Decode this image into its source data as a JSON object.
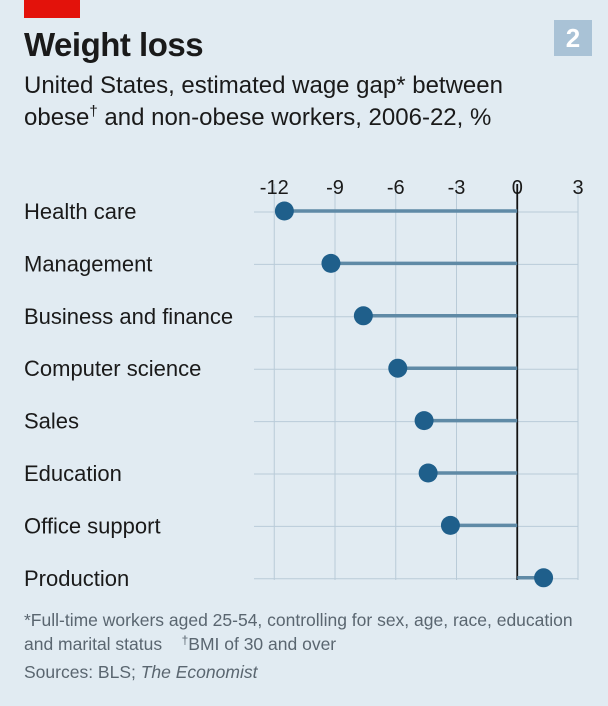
{
  "header": {
    "badge": "2",
    "title": "Weight loss",
    "subtitle_part1": "United States, estimated wage gap* between obese",
    "subtitle_dagger": "†",
    "subtitle_part2": " and non-obese workers, 2006-22, %"
  },
  "colors": {
    "accent_red": "#e3120b",
    "dot": "#1f5f8b",
    "stem": "#5f8aa6",
    "badge": "#a9c2d6",
    "background": "#e1ebf2"
  },
  "chart_data": {
    "type": "dot",
    "title": "Weight loss",
    "subtitle": "United States, estimated wage gap* between obese† and non-obese workers, 2006-22, %",
    "xlabel": "",
    "ylabel": "",
    "xlim": [
      -13,
      3
    ],
    "ticks": [
      -12,
      -9,
      -6,
      -3,
      0,
      3
    ],
    "tick_labels": [
      "-12",
      "-9",
      "-6",
      "-3",
      "0",
      "3"
    ],
    "categories": [
      "Health care",
      "Management",
      "Business and finance",
      "Computer science",
      "Sales",
      "Education",
      "Office support",
      "Production"
    ],
    "values": [
      -11.5,
      -9.2,
      -7.6,
      -5.9,
      -4.6,
      -4.4,
      -3.3,
      1.3
    ]
  },
  "footer": {
    "note_part1": "*Full-time workers aged 25-54, controlling for sex, age, race, education and marital status",
    "note_dagger": "†",
    "note_part2": "BMI of 30 and over",
    "sources_prefix": "Sources: BLS; ",
    "sources_italic": "The Economist"
  }
}
